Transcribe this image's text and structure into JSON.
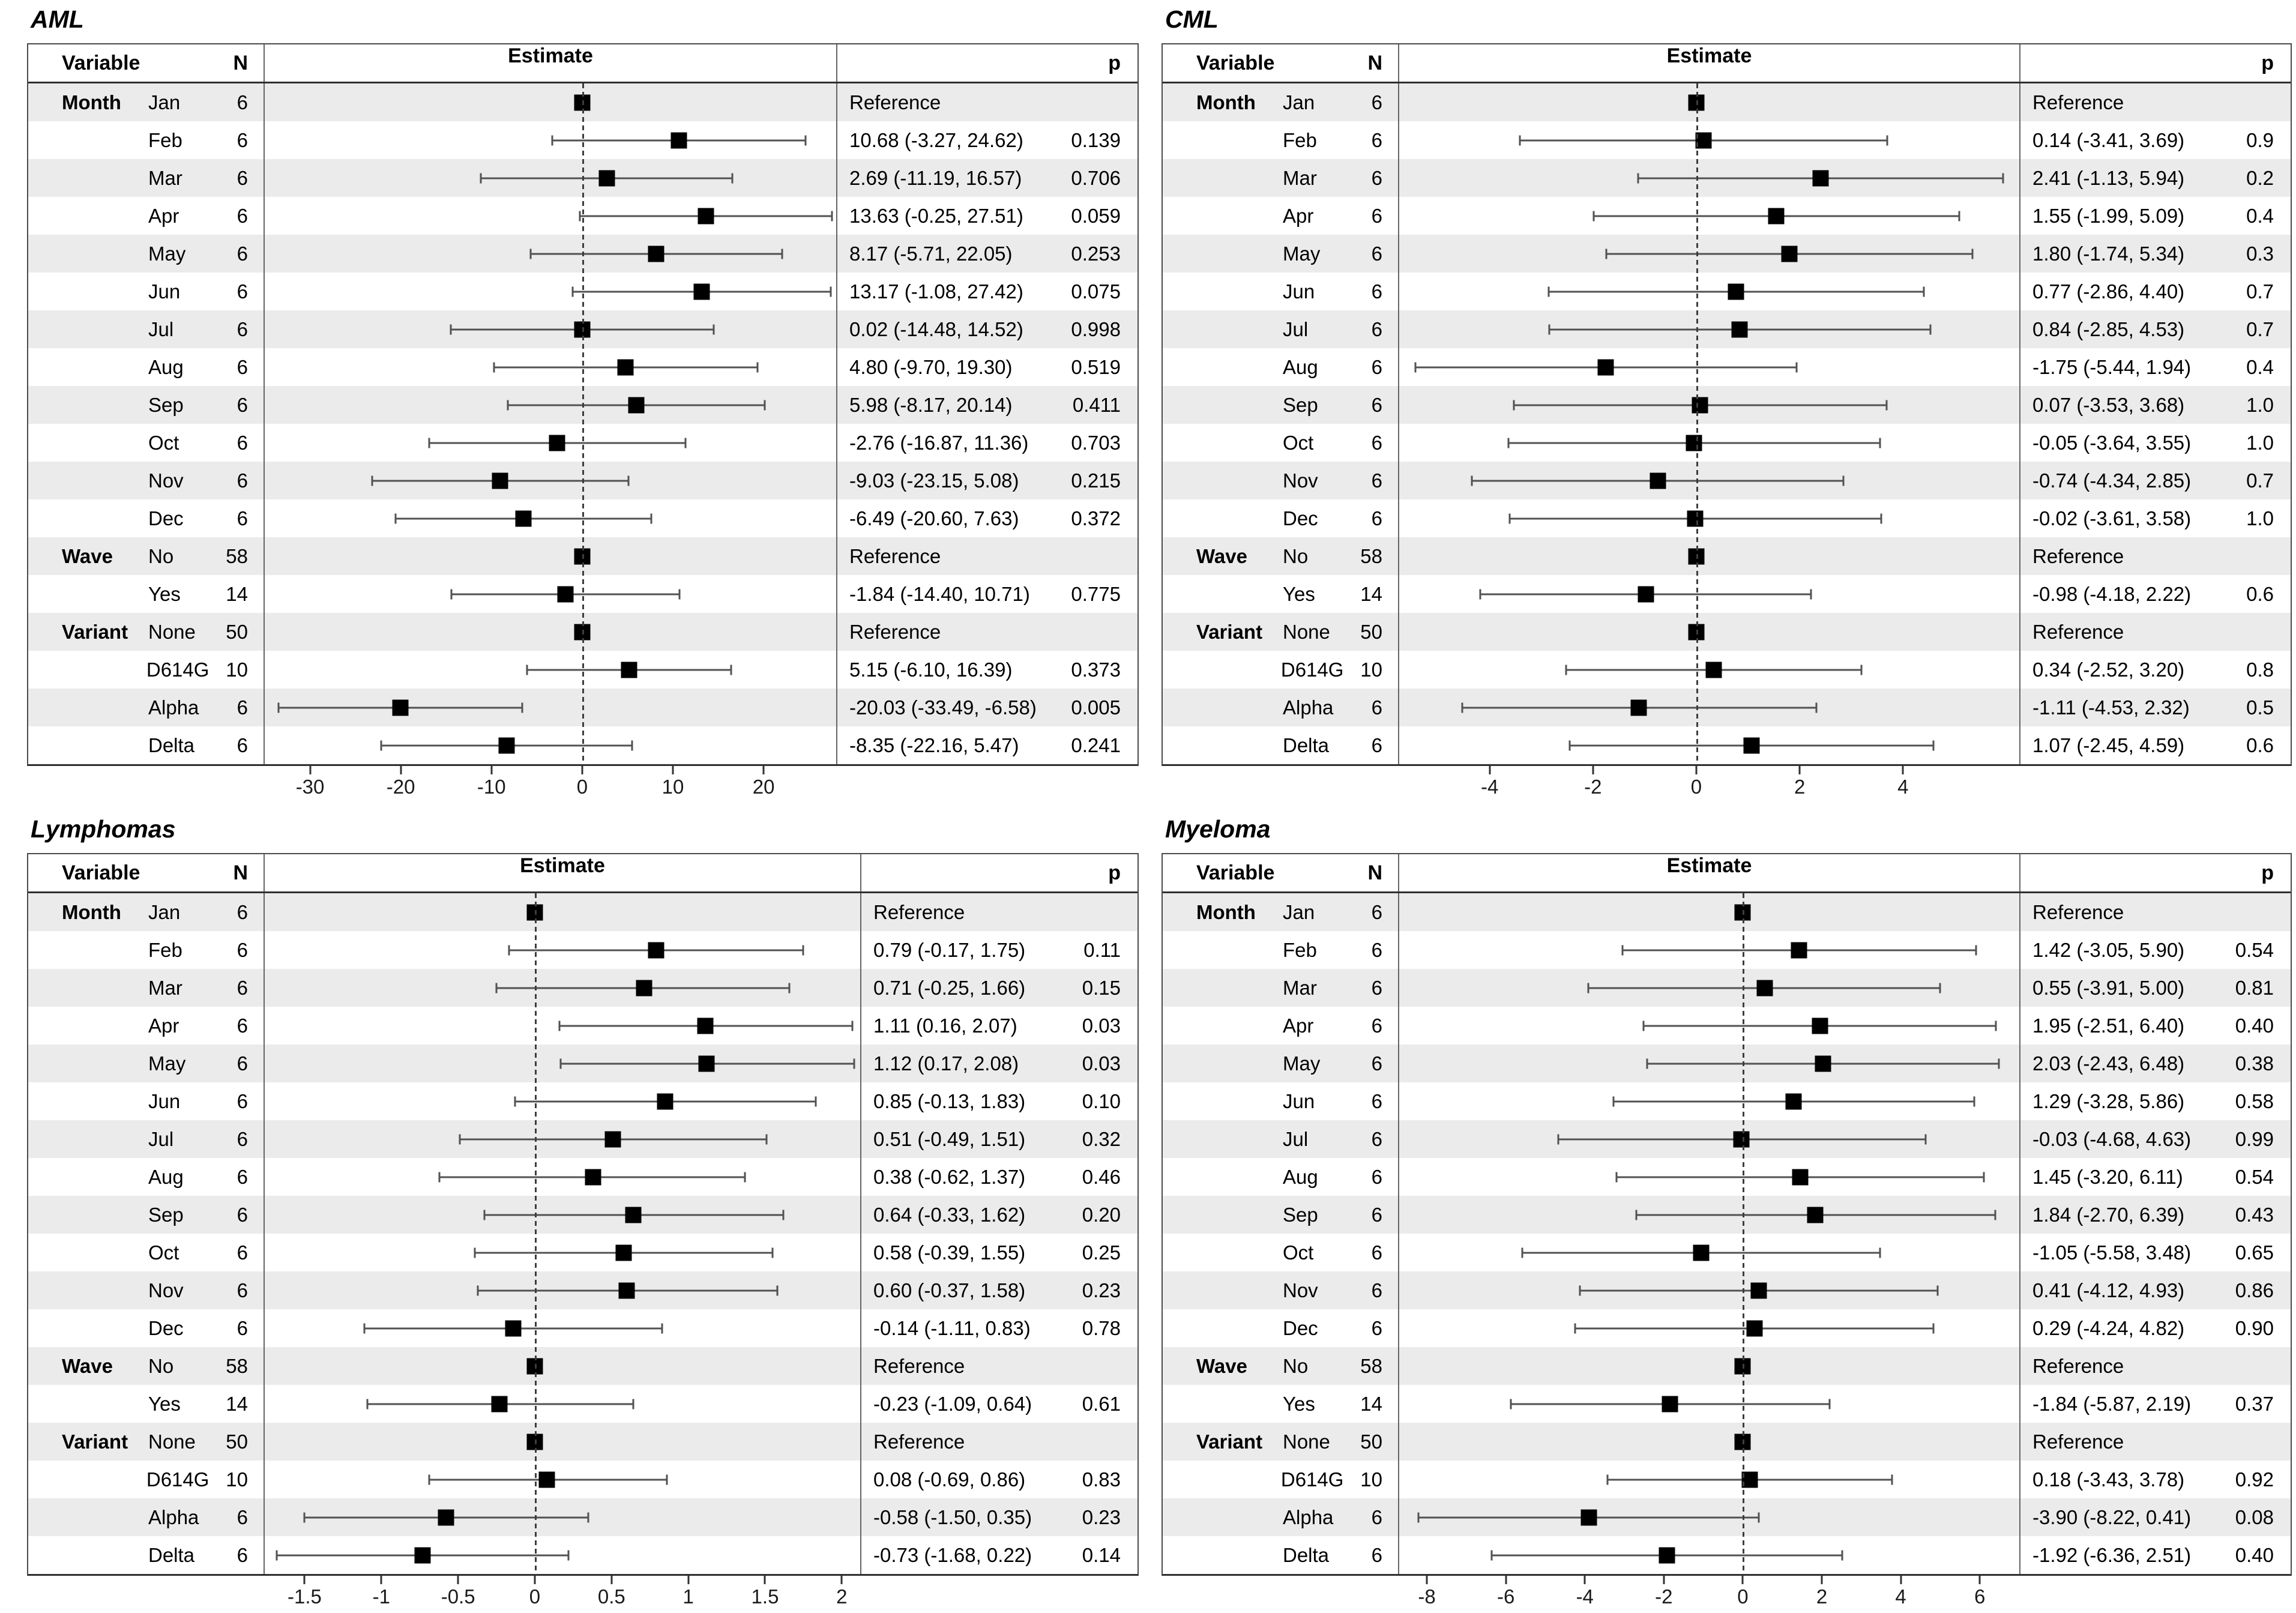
{
  "chart_data": [
    {
      "type": "forest",
      "title": "AML",
      "headers": {
        "variable": "Variable",
        "n": "N",
        "estimate": "Estimate",
        "p": "p"
      },
      "xlim": [
        -35,
        28
      ],
      "xticks": [
        -30,
        -20,
        -10,
        0,
        10,
        20
      ],
      "zero_line": 0,
      "rows": [
        {
          "group": "Month",
          "level": "Jan",
          "n": 6,
          "est": 0,
          "lo": null,
          "hi": null,
          "text": "Reference",
          "p": "",
          "ref": true
        },
        {
          "group": "",
          "level": "Feb",
          "n": 6,
          "est": 10.68,
          "lo": -3.27,
          "hi": 24.62,
          "text": "10.68 (-3.27, 24.62)",
          "p": "0.139",
          "ref": false
        },
        {
          "group": "",
          "level": "Mar",
          "n": 6,
          "est": 2.69,
          "lo": -11.19,
          "hi": 16.57,
          "text": "2.69 (-11.19, 16.57)",
          "p": "0.706",
          "ref": false
        },
        {
          "group": "",
          "level": "Apr",
          "n": 6,
          "est": 13.63,
          "lo": -0.25,
          "hi": 27.51,
          "text": "13.63 (-0.25, 27.51)",
          "p": "0.059",
          "ref": false
        },
        {
          "group": "",
          "level": "May",
          "n": 6,
          "est": 8.17,
          "lo": -5.71,
          "hi": 22.05,
          "text": "8.17 (-5.71, 22.05)",
          "p": "0.253",
          "ref": false
        },
        {
          "group": "",
          "level": "Jun",
          "n": 6,
          "est": 13.17,
          "lo": -1.08,
          "hi": 27.42,
          "text": "13.17 (-1.08, 27.42)",
          "p": "0.075",
          "ref": false
        },
        {
          "group": "",
          "level": "Jul",
          "n": 6,
          "est": 0.02,
          "lo": -14.48,
          "hi": 14.52,
          "text": "0.02 (-14.48, 14.52)",
          "p": "0.998",
          "ref": false
        },
        {
          "group": "",
          "level": "Aug",
          "n": 6,
          "est": 4.8,
          "lo": -9.7,
          "hi": 19.3,
          "text": "4.80 (-9.70, 19.30)",
          "p": "0.519",
          "ref": false
        },
        {
          "group": "",
          "level": "Sep",
          "n": 6,
          "est": 5.98,
          "lo": -8.17,
          "hi": 20.14,
          "text": "5.98 (-8.17, 20.14)",
          "p": "0.411",
          "ref": false
        },
        {
          "group": "",
          "level": "Oct",
          "n": 6,
          "est": -2.76,
          "lo": -16.87,
          "hi": 11.36,
          "text": "-2.76 (-16.87, 11.36)",
          "p": "0.703",
          "ref": false
        },
        {
          "group": "",
          "level": "Nov",
          "n": 6,
          "est": -9.03,
          "lo": -23.15,
          "hi": 5.08,
          "text": "-9.03 (-23.15, 5.08)",
          "p": "0.215",
          "ref": false
        },
        {
          "group": "",
          "level": "Dec",
          "n": 6,
          "est": -6.49,
          "lo": -20.6,
          "hi": 7.63,
          "text": "-6.49 (-20.60, 7.63)",
          "p": "0.372",
          "ref": false
        },
        {
          "group": "Wave",
          "level": "No",
          "n": 58,
          "est": 0,
          "lo": null,
          "hi": null,
          "text": "Reference",
          "p": "",
          "ref": true
        },
        {
          "group": "",
          "level": "Yes",
          "n": 14,
          "est": -1.84,
          "lo": -14.4,
          "hi": 10.71,
          "text": "-1.84 (-14.40, 10.71)",
          "p": "0.775",
          "ref": false
        },
        {
          "group": "Variant",
          "level": "None",
          "n": 50,
          "est": 0,
          "lo": null,
          "hi": null,
          "text": "Reference",
          "p": "",
          "ref": true
        },
        {
          "group": "",
          "level": "D614G",
          "n": 10,
          "est": 5.15,
          "lo": -6.1,
          "hi": 16.39,
          "text": "5.15 (-6.10, 16.39)",
          "p": "0.373",
          "ref": false
        },
        {
          "group": "",
          "level": "Alpha",
          "n": 6,
          "est": -20.03,
          "lo": -33.49,
          "hi": -6.58,
          "text": "-20.03 (-33.49, -6.58)",
          "p": "0.005",
          "ref": false
        },
        {
          "group": "",
          "level": "Delta",
          "n": 6,
          "est": -8.35,
          "lo": -22.16,
          "hi": 5.47,
          "text": "-8.35 (-22.16, 5.47)",
          "p": "0.241",
          "ref": false
        }
      ]
    },
    {
      "type": "forest",
      "title": "CML",
      "headers": {
        "variable": "Variable",
        "n": "N",
        "estimate": "Estimate",
        "p": "p"
      },
      "xlim": [
        -5.75,
        6.25
      ],
      "xticks": [
        -4,
        -2,
        0,
        2,
        4
      ],
      "zero_line": 0,
      "rows": [
        {
          "group": "Month",
          "level": "Jan",
          "n": 6,
          "est": 0,
          "lo": null,
          "hi": null,
          "text": "Reference",
          "p": "",
          "ref": true
        },
        {
          "group": "",
          "level": "Feb",
          "n": 6,
          "est": 0.14,
          "lo": -3.41,
          "hi": 3.69,
          "text": "0.14 (-3.41, 3.69)",
          "p": "0.9",
          "ref": false
        },
        {
          "group": "",
          "level": "Mar",
          "n": 6,
          "est": 2.41,
          "lo": -1.13,
          "hi": 5.94,
          "text": "2.41 (-1.13, 5.94)",
          "p": "0.2",
          "ref": false
        },
        {
          "group": "",
          "level": "Apr",
          "n": 6,
          "est": 1.55,
          "lo": -1.99,
          "hi": 5.09,
          "text": "1.55 (-1.99, 5.09)",
          "p": "0.4",
          "ref": false
        },
        {
          "group": "",
          "level": "May",
          "n": 6,
          "est": 1.8,
          "lo": -1.74,
          "hi": 5.34,
          "text": "1.80 (-1.74, 5.34)",
          "p": "0.3",
          "ref": false
        },
        {
          "group": "",
          "level": "Jun",
          "n": 6,
          "est": 0.77,
          "lo": -2.86,
          "hi": 4.4,
          "text": "0.77 (-2.86, 4.40)",
          "p": "0.7",
          "ref": false
        },
        {
          "group": "",
          "level": "Jul",
          "n": 6,
          "est": 0.84,
          "lo": -2.85,
          "hi": 4.53,
          "text": "0.84 (-2.85, 4.53)",
          "p": "0.7",
          "ref": false
        },
        {
          "group": "",
          "level": "Aug",
          "n": 6,
          "est": -1.75,
          "lo": -5.44,
          "hi": 1.94,
          "text": "-1.75 (-5.44, 1.94)",
          "p": "0.4",
          "ref": false
        },
        {
          "group": "",
          "level": "Sep",
          "n": 6,
          "est": 0.07,
          "lo": -3.53,
          "hi": 3.68,
          "text": "0.07 (-3.53, 3.68)",
          "p": "1.0",
          "ref": false
        },
        {
          "group": "",
          "level": "Oct",
          "n": 6,
          "est": -0.05,
          "lo": -3.64,
          "hi": 3.55,
          "text": "-0.05 (-3.64, 3.55)",
          "p": "1.0",
          "ref": false
        },
        {
          "group": "",
          "level": "Nov",
          "n": 6,
          "est": -0.74,
          "lo": -4.34,
          "hi": 2.85,
          "text": "-0.74 (-4.34, 2.85)",
          "p": "0.7",
          "ref": false
        },
        {
          "group": "",
          "level": "Dec",
          "n": 6,
          "est": -0.02,
          "lo": -3.61,
          "hi": 3.58,
          "text": "-0.02 (-3.61, 3.58)",
          "p": "1.0",
          "ref": false
        },
        {
          "group": "Wave",
          "level": "No",
          "n": 58,
          "est": 0,
          "lo": null,
          "hi": null,
          "text": "Reference",
          "p": "",
          "ref": true
        },
        {
          "group": "",
          "level": "Yes",
          "n": 14,
          "est": -0.98,
          "lo": -4.18,
          "hi": 2.22,
          "text": "-0.98 (-4.18, 2.22)",
          "p": "0.6",
          "ref": false
        },
        {
          "group": "Variant",
          "level": "None",
          "n": 50,
          "est": 0,
          "lo": null,
          "hi": null,
          "text": "Reference",
          "p": "",
          "ref": true
        },
        {
          "group": "",
          "level": "D614G",
          "n": 10,
          "est": 0.34,
          "lo": -2.52,
          "hi": 3.2,
          "text": "0.34 (-2.52, 3.20)",
          "p": "0.8",
          "ref": false
        },
        {
          "group": "",
          "level": "Alpha",
          "n": 6,
          "est": -1.11,
          "lo": -4.53,
          "hi": 2.32,
          "text": "-1.11 (-4.53, 2.32)",
          "p": "0.5",
          "ref": false
        },
        {
          "group": "",
          "level": "Delta",
          "n": 6,
          "est": 1.07,
          "lo": -2.45,
          "hi": 4.59,
          "text": "1.07 (-2.45, 4.59)",
          "p": "0.6",
          "ref": false
        }
      ]
    },
    {
      "type": "forest",
      "title": "Lymphomas",
      "headers": {
        "variable": "Variable",
        "n": "N",
        "estimate": "Estimate",
        "p": "p"
      },
      "xlim": [
        -1.76,
        2.12
      ],
      "xticks": [
        -1.5,
        -1,
        -0.5,
        0,
        0.5,
        1,
        1.5,
        2
      ],
      "zero_line": 0,
      "rows": [
        {
          "group": "Month",
          "level": "Jan",
          "n": 6,
          "est": 0,
          "lo": null,
          "hi": null,
          "text": "Reference",
          "p": "",
          "ref": true
        },
        {
          "group": "",
          "level": "Feb",
          "n": 6,
          "est": 0.79,
          "lo": -0.17,
          "hi": 1.75,
          "text": "0.79 (-0.17, 1.75)",
          "p": "0.11",
          "ref": false
        },
        {
          "group": "",
          "level": "Mar",
          "n": 6,
          "est": 0.71,
          "lo": -0.25,
          "hi": 1.66,
          "text": "0.71 (-0.25, 1.66)",
          "p": "0.15",
          "ref": false
        },
        {
          "group": "",
          "level": "Apr",
          "n": 6,
          "est": 1.11,
          "lo": 0.16,
          "hi": 2.07,
          "text": "1.11 (0.16, 2.07)",
          "p": "0.03",
          "ref": false
        },
        {
          "group": "",
          "level": "May",
          "n": 6,
          "est": 1.12,
          "lo": 0.17,
          "hi": 2.08,
          "text": "1.12 (0.17, 2.08)",
          "p": "0.03",
          "ref": false
        },
        {
          "group": "",
          "level": "Jun",
          "n": 6,
          "est": 0.85,
          "lo": -0.13,
          "hi": 1.83,
          "text": "0.85 (-0.13, 1.83)",
          "p": "0.10",
          "ref": false
        },
        {
          "group": "",
          "level": "Jul",
          "n": 6,
          "est": 0.51,
          "lo": -0.49,
          "hi": 1.51,
          "text": "0.51 (-0.49, 1.51)",
          "p": "0.32",
          "ref": false
        },
        {
          "group": "",
          "level": "Aug",
          "n": 6,
          "est": 0.38,
          "lo": -0.62,
          "hi": 1.37,
          "text": "0.38 (-0.62, 1.37)",
          "p": "0.46",
          "ref": false
        },
        {
          "group": "",
          "level": "Sep",
          "n": 6,
          "est": 0.64,
          "lo": -0.33,
          "hi": 1.62,
          "text": "0.64 (-0.33, 1.62)",
          "p": "0.20",
          "ref": false
        },
        {
          "group": "",
          "level": "Oct",
          "n": 6,
          "est": 0.58,
          "lo": -0.39,
          "hi": 1.55,
          "text": "0.58 (-0.39, 1.55)",
          "p": "0.25",
          "ref": false
        },
        {
          "group": "",
          "level": "Nov",
          "n": 6,
          "est": 0.6,
          "lo": -0.37,
          "hi": 1.58,
          "text": "0.60 (-0.37, 1.58)",
          "p": "0.23",
          "ref": false
        },
        {
          "group": "",
          "level": "Dec",
          "n": 6,
          "est": -0.14,
          "lo": -1.11,
          "hi": 0.83,
          "text": "-0.14 (-1.11, 0.83)",
          "p": "0.78",
          "ref": false
        },
        {
          "group": "Wave",
          "level": "No",
          "n": 58,
          "est": 0,
          "lo": null,
          "hi": null,
          "text": "Reference",
          "p": "",
          "ref": true
        },
        {
          "group": "",
          "level": "Yes",
          "n": 14,
          "est": -0.23,
          "lo": -1.09,
          "hi": 0.64,
          "text": "-0.23 (-1.09, 0.64)",
          "p": "0.61",
          "ref": false
        },
        {
          "group": "Variant",
          "level": "None",
          "n": 50,
          "est": 0,
          "lo": null,
          "hi": null,
          "text": "Reference",
          "p": "",
          "ref": true
        },
        {
          "group": "",
          "level": "D614G",
          "n": 10,
          "est": 0.08,
          "lo": -0.69,
          "hi": 0.86,
          "text": "0.08 (-0.69, 0.86)",
          "p": "0.83",
          "ref": false
        },
        {
          "group": "",
          "level": "Alpha",
          "n": 6,
          "est": -0.58,
          "lo": -1.5,
          "hi": 0.35,
          "text": "-0.58 (-1.50, 0.35)",
          "p": "0.23",
          "ref": false
        },
        {
          "group": "",
          "level": "Delta",
          "n": 6,
          "est": -0.73,
          "lo": -1.68,
          "hi": 0.22,
          "text": "-0.73 (-1.68, 0.22)",
          "p": "0.14",
          "ref": false
        }
      ]
    },
    {
      "type": "forest",
      "title": "Myeloma",
      "headers": {
        "variable": "Variable",
        "n": "N",
        "estimate": "Estimate",
        "p": "p"
      },
      "xlim": [
        -8.7,
        7.0
      ],
      "xticks": [
        -8,
        -6,
        -4,
        -2,
        0,
        2,
        4,
        6
      ],
      "zero_line": 0,
      "rows": [
        {
          "group": "Month",
          "level": "Jan",
          "n": 6,
          "est": 0,
          "lo": null,
          "hi": null,
          "text": "Reference",
          "p": "",
          "ref": true
        },
        {
          "group": "",
          "level": "Feb",
          "n": 6,
          "est": 1.42,
          "lo": -3.05,
          "hi": 5.9,
          "text": "1.42 (-3.05, 5.90)",
          "p": "0.54",
          "ref": false
        },
        {
          "group": "",
          "level": "Mar",
          "n": 6,
          "est": 0.55,
          "lo": -3.91,
          "hi": 5.0,
          "text": "0.55 (-3.91, 5.00)",
          "p": "0.81",
          "ref": false
        },
        {
          "group": "",
          "level": "Apr",
          "n": 6,
          "est": 1.95,
          "lo": -2.51,
          "hi": 6.4,
          "text": "1.95 (-2.51, 6.40)",
          "p": "0.40",
          "ref": false
        },
        {
          "group": "",
          "level": "May",
          "n": 6,
          "est": 2.03,
          "lo": -2.43,
          "hi": 6.48,
          "text": "2.03 (-2.43, 6.48)",
          "p": "0.38",
          "ref": false
        },
        {
          "group": "",
          "level": "Jun",
          "n": 6,
          "est": 1.29,
          "lo": -3.28,
          "hi": 5.86,
          "text": "1.29 (-3.28, 5.86)",
          "p": "0.58",
          "ref": false
        },
        {
          "group": "",
          "level": "Jul",
          "n": 6,
          "est": -0.03,
          "lo": -4.68,
          "hi": 4.63,
          "text": "-0.03 (-4.68, 4.63)",
          "p": "0.99",
          "ref": false
        },
        {
          "group": "",
          "level": "Aug",
          "n": 6,
          "est": 1.45,
          "lo": -3.2,
          "hi": 6.11,
          "text": "1.45 (-3.20, 6.11)",
          "p": "0.54",
          "ref": false
        },
        {
          "group": "",
          "level": "Sep",
          "n": 6,
          "est": 1.84,
          "lo": -2.7,
          "hi": 6.39,
          "text": "1.84 (-2.70, 6.39)",
          "p": "0.43",
          "ref": false
        },
        {
          "group": "",
          "level": "Oct",
          "n": 6,
          "est": -1.05,
          "lo": -5.58,
          "hi": 3.48,
          "text": "-1.05 (-5.58, 3.48)",
          "p": "0.65",
          "ref": false
        },
        {
          "group": "",
          "level": "Nov",
          "n": 6,
          "est": 0.41,
          "lo": -4.12,
          "hi": 4.93,
          "text": "0.41 (-4.12, 4.93)",
          "p": "0.86",
          "ref": false
        },
        {
          "group": "",
          "level": "Dec",
          "n": 6,
          "est": 0.29,
          "lo": -4.24,
          "hi": 4.82,
          "text": "0.29 (-4.24, 4.82)",
          "p": "0.90",
          "ref": false
        },
        {
          "group": "Wave",
          "level": "No",
          "n": 58,
          "est": 0,
          "lo": null,
          "hi": null,
          "text": "Reference",
          "p": "",
          "ref": true
        },
        {
          "group": "",
          "level": "Yes",
          "n": 14,
          "est": -1.84,
          "lo": -5.87,
          "hi": 2.19,
          "text": "-1.84 (-5.87, 2.19)",
          "p": "0.37",
          "ref": false
        },
        {
          "group": "Variant",
          "level": "None",
          "n": 50,
          "est": 0,
          "lo": null,
          "hi": null,
          "text": "Reference",
          "p": "",
          "ref": true
        },
        {
          "group": "",
          "level": "D614G",
          "n": 10,
          "est": 0.18,
          "lo": -3.43,
          "hi": 3.78,
          "text": "0.18 (-3.43, 3.78)",
          "p": "0.92",
          "ref": false
        },
        {
          "group": "",
          "level": "Alpha",
          "n": 6,
          "est": -3.9,
          "lo": -8.22,
          "hi": 0.41,
          "text": "-3.90 (-8.22, 0.41)",
          "p": "0.08",
          "ref": false
        },
        {
          "group": "",
          "level": "Delta",
          "n": 6,
          "est": -1.92,
          "lo": -6.36,
          "hi": 2.51,
          "text": "-1.92 (-6.36, 2.51)",
          "p": "0.40",
          "ref": false
        }
      ]
    }
  ]
}
